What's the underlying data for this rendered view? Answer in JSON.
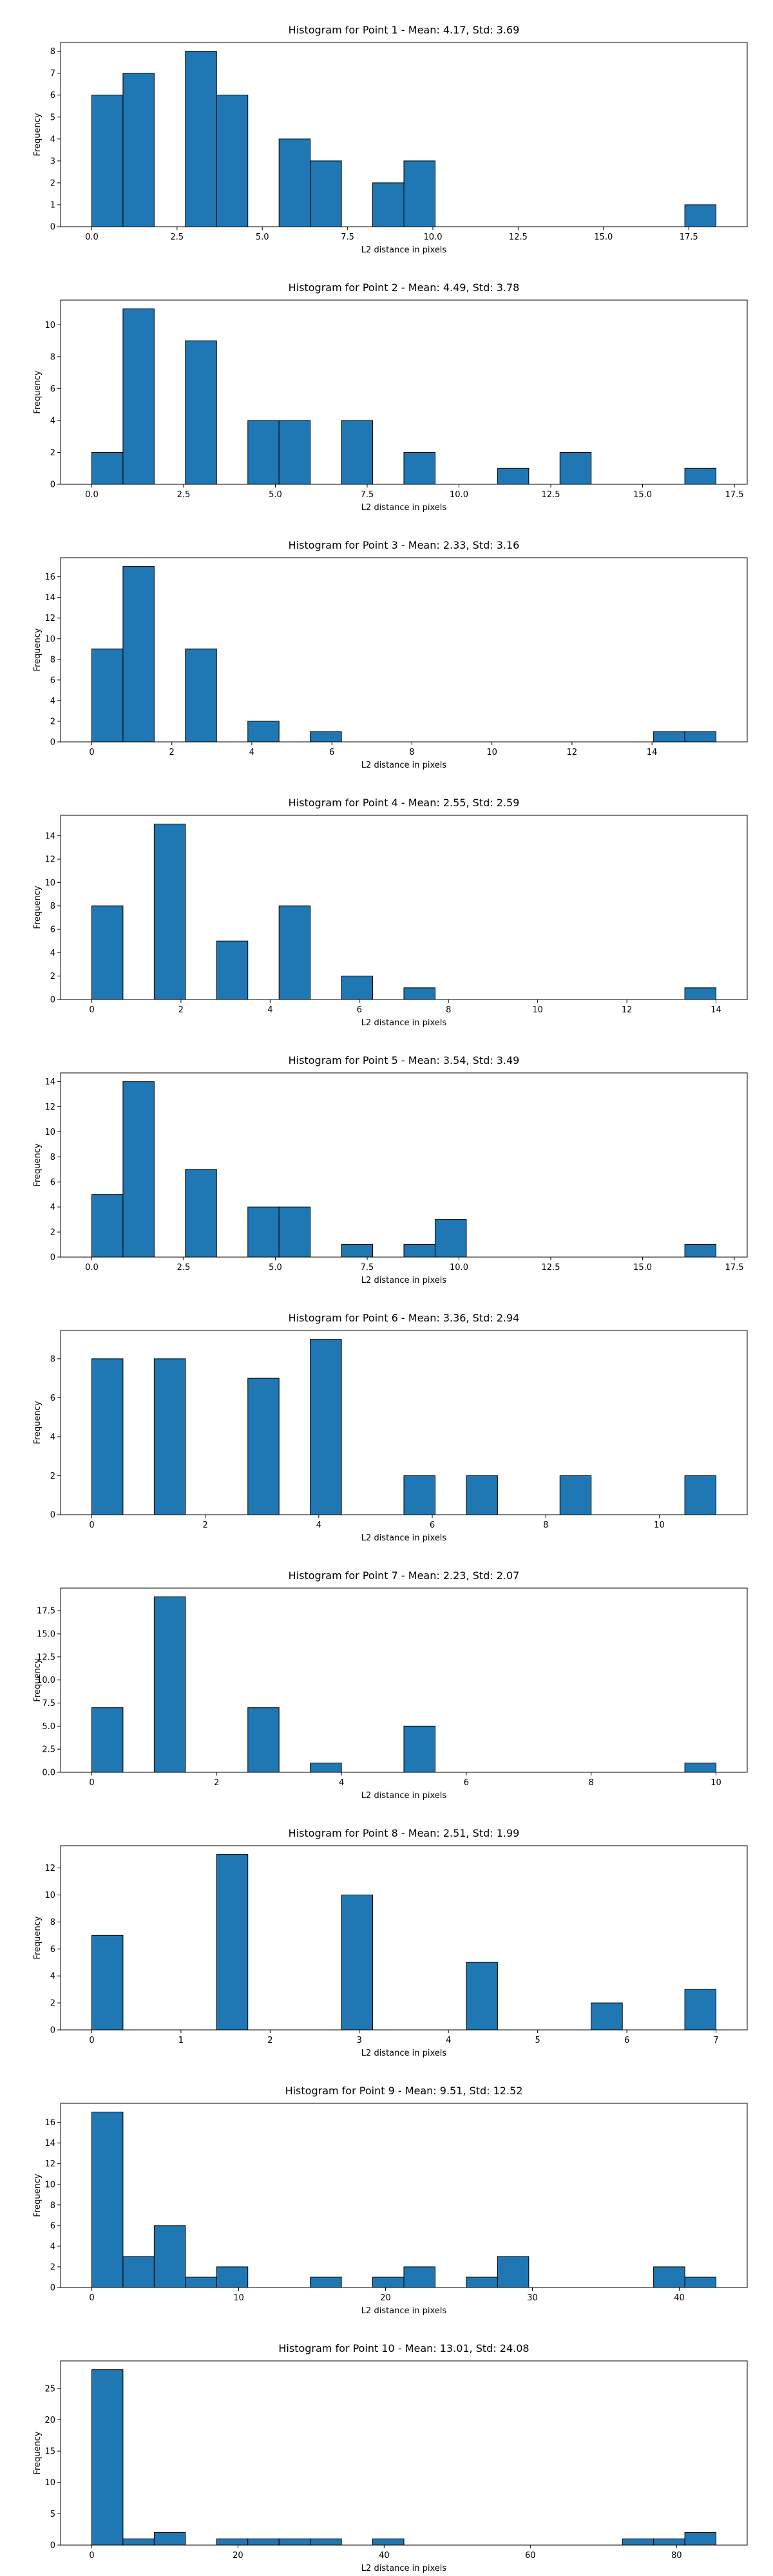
{
  "chart_data": [
    {
      "type": "histogram",
      "title": "Histogram for Point 1 - Mean: 4.17, Std: 3.69",
      "xlabel": "L2 distance in pixels",
      "ylabel": "Frequency",
      "color": "#1f77b4",
      "bins": [
        0,
        0.915,
        1.83,
        2.745,
        3.66,
        4.575,
        5.49,
        6.405,
        7.32,
        8.235,
        9.15,
        10.065,
        10.98,
        11.895,
        12.81,
        13.725,
        14.64,
        15.555,
        16.47,
        17.385,
        18.3
      ],
      "counts": [
        6,
        7,
        0,
        8,
        6,
        0,
        4,
        3,
        0,
        2,
        3,
        0,
        0,
        0,
        0,
        0,
        0,
        0,
        0,
        1
      ],
      "xlim": [
        -0.915,
        19.215
      ],
      "ylim": [
        0,
        8.4
      ],
      "xticks": [
        {
          "value": 0,
          "label": "0.0"
        },
        2.5,
        {
          "value": 5,
          "label": "5.0"
        },
        7.5,
        {
          "value": 10,
          "label": "10.0"
        },
        12.5,
        {
          "value": 15,
          "label": "15.0"
        },
        17.5
      ],
      "yticks": [
        0,
        1,
        2,
        3,
        4,
        5,
        6,
        7,
        8
      ]
    },
    {
      "type": "histogram",
      "title": "Histogram for Point 2 - Mean: 4.49, Std: 3.78",
      "xlabel": "L2 distance in pixels",
      "ylabel": "Frequency",
      "color": "#1f77b4",
      "bins": [
        0,
        0.85,
        1.7,
        2.55,
        3.4,
        4.25,
        5.1,
        5.95,
        6.8,
        7.65,
        8.5,
        9.35,
        10.2,
        11.05,
        11.9,
        12.75,
        13.6,
        14.45,
        15.3,
        16.15,
        17
      ],
      "counts": [
        2,
        11,
        0,
        9,
        0,
        4,
        4,
        0,
        4,
        0,
        2,
        0,
        0,
        1,
        0,
        2,
        0,
        0,
        0,
        1
      ],
      "xlim": [
        -0.85,
        17.85
      ],
      "ylim": [
        0,
        11.55
      ],
      "xticks": [
        {
          "value": 0,
          "label": "0.0"
        },
        2.5,
        {
          "value": 5,
          "label": "5.0"
        },
        7.5,
        {
          "value": 10,
          "label": "10.0"
        },
        12.5,
        {
          "value": 15,
          "label": "15.0"
        },
        17.5
      ],
      "yticks": [
        0,
        2,
        4,
        6,
        8,
        10
      ]
    },
    {
      "type": "histogram",
      "title": "Histogram for Point 3 - Mean: 2.33, Std: 3.16",
      "xlabel": "L2 distance in pixels",
      "ylabel": "Frequency",
      "color": "#1f77b4",
      "bins": [
        0,
        0.78,
        1.56,
        2.34,
        3.12,
        3.9,
        4.68,
        5.46,
        6.24,
        7.02,
        7.8,
        8.58,
        9.36,
        10.14,
        10.92,
        11.7,
        12.48,
        13.26,
        14.04,
        14.82,
        15.6
      ],
      "counts": [
        9,
        17,
        0,
        9,
        0,
        2,
        0,
        1,
        0,
        0,
        0,
        0,
        0,
        0,
        0,
        0,
        0,
        0,
        1,
        1
      ],
      "xlim": [
        -0.78,
        16.38
      ],
      "ylim": [
        0,
        17.85
      ],
      "xticks": [
        0,
        2,
        4,
        6,
        8,
        10,
        12,
        14
      ],
      "yticks": [
        0,
        2,
        4,
        6,
        8,
        10,
        12,
        14,
        16
      ]
    },
    {
      "type": "histogram",
      "title": "Histogram for Point 4 - Mean: 2.55, Std: 2.59",
      "xlabel": "L2 distance in pixels",
      "ylabel": "Frequency",
      "color": "#1f77b4",
      "bins": [
        0,
        0.7,
        1.4,
        2.1,
        2.8,
        3.5,
        4.2,
        4.9,
        5.6,
        6.3,
        7,
        7.7,
        8.4,
        9.1,
        9.8,
        10.5,
        11.2,
        11.9,
        12.6,
        13.3,
        14
      ],
      "counts": [
        8,
        0,
        15,
        0,
        5,
        0,
        8,
        0,
        2,
        0,
        1,
        0,
        0,
        0,
        0,
        0,
        0,
        0,
        0,
        1
      ],
      "xlim": [
        -0.7,
        14.7
      ],
      "ylim": [
        0,
        15.75
      ],
      "xticks": [
        0,
        2,
        4,
        6,
        8,
        10,
        12,
        14
      ],
      "yticks": [
        0,
        2,
        4,
        6,
        8,
        10,
        12,
        14
      ]
    },
    {
      "type": "histogram",
      "title": "Histogram for Point 5 - Mean: 3.54, Std: 3.49",
      "xlabel": "L2 distance in pixels",
      "ylabel": "Frequency",
      "color": "#1f77b4",
      "bins": [
        0,
        0.85,
        1.7,
        2.55,
        3.4,
        4.25,
        5.1,
        5.95,
        6.8,
        7.65,
        8.5,
        9.35,
        10.2,
        11.05,
        11.9,
        12.75,
        13.6,
        14.45,
        15.3,
        16.15,
        17
      ],
      "counts": [
        5,
        14,
        0,
        7,
        0,
        4,
        4,
        0,
        1,
        0,
        1,
        3,
        0,
        0,
        0,
        0,
        0,
        0,
        0,
        1
      ],
      "xlim": [
        -0.85,
        17.85
      ],
      "ylim": [
        0,
        14.7
      ],
      "xticks": [
        {
          "value": 0,
          "label": "0.0"
        },
        2.5,
        {
          "value": 5,
          "label": "5.0"
        },
        7.5,
        {
          "value": 10,
          "label": "10.0"
        },
        12.5,
        {
          "value": 15,
          "label": "15.0"
        },
        17.5
      ],
      "yticks": [
        0,
        2,
        4,
        6,
        8,
        10,
        12,
        14
      ]
    },
    {
      "type": "histogram",
      "title": "Histogram for Point 6 - Mean: 3.36, Std: 2.94",
      "xlabel": "L2 distance in pixels",
      "ylabel": "Frequency",
      "color": "#1f77b4",
      "bins": [
        0,
        0.55,
        1.1,
        1.65,
        2.2,
        2.75,
        3.3,
        3.85,
        4.4,
        4.95,
        5.5,
        6.05,
        6.6,
        7.15,
        7.7,
        8.25,
        8.8,
        9.35,
        9.9,
        10.45,
        11
      ],
      "counts": [
        8,
        0,
        8,
        0,
        0,
        7,
        0,
        9,
        0,
        0,
        2,
        0,
        2,
        0,
        0,
        2,
        0,
        0,
        0,
        2
      ],
      "xlim": [
        -0.55,
        11.55
      ],
      "ylim": [
        0,
        9.45
      ],
      "xticks": [
        0,
        2,
        4,
        6,
        8,
        10
      ],
      "yticks": [
        0,
        2,
        4,
        6,
        8
      ]
    },
    {
      "type": "histogram",
      "title": "Histogram for Point 7 - Mean: 2.23, Std: 2.07",
      "xlabel": "L2 distance in pixels",
      "ylabel": "Frequency",
      "color": "#1f77b4",
      "bins": [
        0,
        0.5,
        1,
        1.5,
        2,
        2.5,
        3,
        3.5,
        4,
        4.5,
        5,
        5.5,
        6,
        6.5,
        7,
        7.5,
        8,
        8.5,
        9,
        9.5,
        10
      ],
      "counts": [
        7,
        0,
        19,
        0,
        0,
        7,
        0,
        1,
        0,
        0,
        5,
        0,
        0,
        0,
        0,
        0,
        0,
        0,
        0,
        1
      ],
      "xlim": [
        -0.5,
        10.5
      ],
      "ylim": [
        0,
        19.95
      ],
      "xticks": [
        0,
        2,
        4,
        6,
        8,
        10
      ],
      "yticks": [
        {
          "value": 0,
          "label": "0.0"
        },
        2.5,
        {
          "value": 5,
          "label": "5.0"
        },
        7.5,
        {
          "value": 10,
          "label": "10.0"
        },
        12.5,
        {
          "value": 15,
          "label": "15.0"
        },
        17.5
      ]
    },
    {
      "type": "histogram",
      "title": "Histogram for Point 8 - Mean: 2.51, Std: 1.99",
      "xlabel": "L2 distance in pixels",
      "ylabel": "Frequency",
      "color": "#1f77b4",
      "bins": [
        0,
        0.35,
        0.7,
        1.05,
        1.4,
        1.75,
        2.1,
        2.45,
        2.8,
        3.15,
        3.5,
        3.85,
        4.2,
        4.55,
        4.9,
        5.25,
        5.6,
        5.95,
        6.3,
        6.65,
        7
      ],
      "counts": [
        7,
        0,
        0,
        0,
        13,
        0,
        0,
        0,
        10,
        0,
        0,
        0,
        5,
        0,
        0,
        0,
        2,
        0,
        0,
        3
      ],
      "xlim": [
        -0.35,
        7.35
      ],
      "ylim": [
        0,
        13.65
      ],
      "xticks": [
        0,
        1,
        2,
        3,
        4,
        5,
        6,
        7
      ],
      "yticks": [
        0,
        2,
        4,
        6,
        8,
        10,
        12
      ]
    },
    {
      "type": "histogram",
      "title": "Histogram for Point 9 - Mean: 9.51, Std: 12.52",
      "xlabel": "L2 distance in pixels",
      "ylabel": "Frequency",
      "color": "#1f77b4",
      "bins": [
        0,
        2.125,
        4.25,
        6.375,
        8.5,
        10.625,
        12.75,
        14.875,
        17,
        19.125,
        21.25,
        23.375,
        25.5,
        27.625,
        29.75,
        31.875,
        34,
        36.125,
        38.25,
        40.375,
        42.5
      ],
      "counts": [
        17,
        3,
        6,
        1,
        2,
        0,
        0,
        1,
        0,
        1,
        2,
        0,
        1,
        3,
        0,
        0,
        0,
        0,
        2,
        1
      ],
      "xlim": [
        -2.125,
        44.625
      ],
      "ylim": [
        0,
        17.85
      ],
      "xticks": [
        0,
        10,
        20,
        30,
        40
      ],
      "yticks": [
        0,
        2,
        4,
        6,
        8,
        10,
        12,
        14,
        16
      ]
    },
    {
      "type": "histogram",
      "title": "Histogram for Point 10 - Mean: 13.01, Std: 24.08",
      "xlabel": "L2 distance in pixels",
      "ylabel": "Frequency",
      "color": "#1f77b4",
      "bins": [
        0,
        4.27,
        8.54,
        12.81,
        17.08,
        21.35,
        25.62,
        29.89,
        34.16,
        38.43,
        42.7,
        46.97,
        51.24,
        55.51,
        59.78,
        64.05,
        68.32,
        72.59,
        76.86,
        81.13,
        85.4
      ],
      "counts": [
        28,
        1,
        2,
        0,
        1,
        1,
        1,
        1,
        0,
        1,
        0,
        0,
        0,
        0,
        0,
        0,
        0,
        1,
        1,
        2
      ],
      "xlim": [
        -4.27,
        89.67
      ],
      "ylim": [
        0,
        29.4
      ],
      "xticks": [
        0,
        20,
        40,
        60,
        80
      ],
      "yticks": [
        0,
        5,
        10,
        15,
        20,
        25
      ]
    }
  ]
}
